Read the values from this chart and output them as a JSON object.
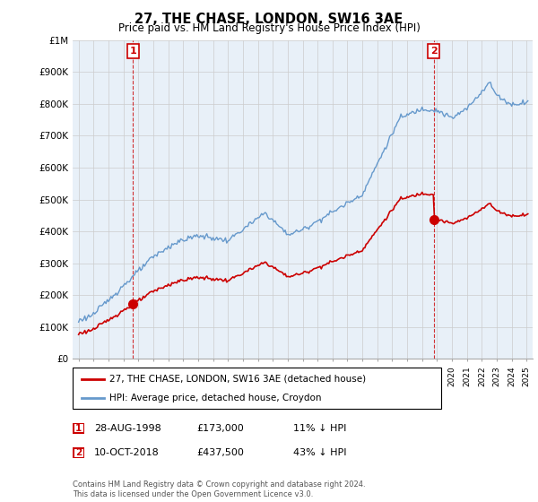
{
  "title": "27, THE CHASE, LONDON, SW16 3AE",
  "subtitle": "Price paid vs. HM Land Registry's House Price Index (HPI)",
  "property_label": "27, THE CHASE, LONDON, SW16 3AE (detached house)",
  "hpi_label": "HPI: Average price, detached house, Croydon",
  "annotation1_date": "28-AUG-1998",
  "annotation1_price": "£173,000",
  "annotation1_hpi": "11% ↓ HPI",
  "annotation2_date": "10-OCT-2018",
  "annotation2_price": "£437,500",
  "annotation2_hpi": "43% ↓ HPI",
  "footer": "Contains HM Land Registry data © Crown copyright and database right 2024.\nThis data is licensed under the Open Government Licence v3.0.",
  "property_color": "#cc0000",
  "hpi_color": "#6699cc",
  "chart_bg": "#e8f0f8",
  "annotation_box_color": "#cc0000",
  "dashed_line_color": "#cc0000",
  "ylim": [
    0,
    1000000
  ],
  "yticks": [
    0,
    100000,
    200000,
    300000,
    400000,
    500000,
    600000,
    700000,
    800000,
    900000,
    1000000
  ],
  "ytick_labels": [
    "£0",
    "£100K",
    "£200K",
    "£300K",
    "£400K",
    "£500K",
    "£600K",
    "£700K",
    "£800K",
    "£900K",
    "£1M"
  ],
  "xlim_start": 1994.6,
  "xlim_end": 2025.4,
  "sale1_x": 1998.65,
  "sale1_y": 173000,
  "sale2_x": 2018.77,
  "sale2_y": 437500,
  "background_color": "#ffffff",
  "grid_color": "#cccccc"
}
